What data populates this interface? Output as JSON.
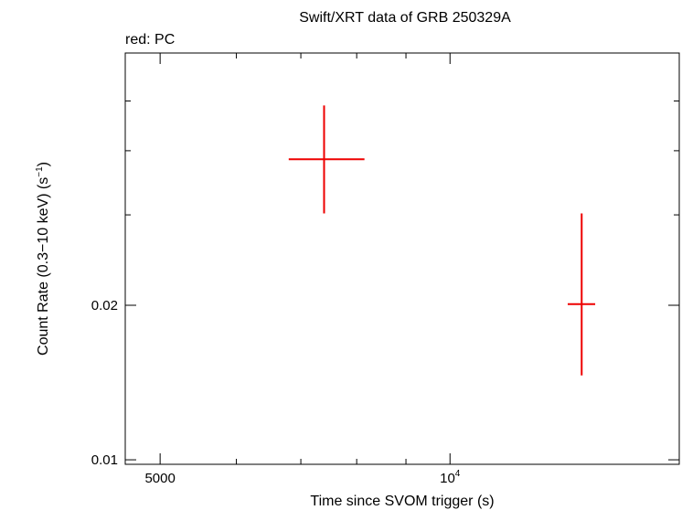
{
  "chart_data": {
    "type": "scatter",
    "title": "Swift/XRT data of GRB 250329A",
    "subtitle": "red: PC",
    "xlabel": "Time since SVOM trigger (s)",
    "ylabel_main": "Count Rate (0.3−10 keV) (s",
    "ylabel_sup": "−1",
    "ylabel_close": ")",
    "x_scale": "log",
    "y_scale": "log",
    "xlim": [
      4600,
      17300
    ],
    "ylim": [
      0.0098,
      0.062
    ],
    "x_ticks": [
      {
        "value": 5000,
        "label": "5000",
        "sup": ""
      },
      {
        "value": 10000,
        "label": "10",
        "sup": "4"
      }
    ],
    "x_minor_ticks": [
      6000,
      7000,
      8000,
      9000,
      20000
    ],
    "y_ticks": [
      {
        "value": 0.01,
        "label": "0.01"
      },
      {
        "value": 0.02,
        "label": "0.02"
      }
    ],
    "y_minor_ticks": [
      0.03,
      0.04,
      0.05
    ],
    "series": [
      {
        "color": "#ee0000",
        "points": [
          {
            "x": 7400,
            "xmin": 6800,
            "xmax": 8150,
            "y": 0.0385,
            "ymin": 0.0302,
            "ymax": 0.049
          },
          {
            "x": 13700,
            "xmin": 13250,
            "xmax": 14150,
            "y": 0.0201,
            "ymin": 0.0146,
            "ymax": 0.0302
          }
        ]
      }
    ]
  }
}
